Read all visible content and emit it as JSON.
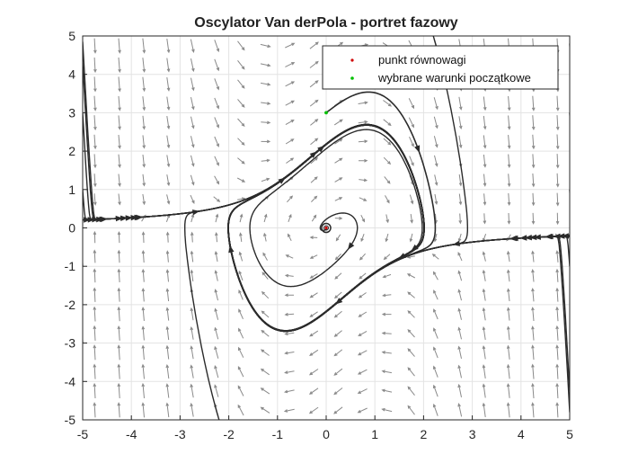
{
  "chart_data": {
    "type": "scatter",
    "title": "Oscylator Van derPola - portret fazowy",
    "xlabel": "",
    "ylabel": "",
    "xlim": [
      -5,
      5
    ],
    "ylim": [
      -5,
      5
    ],
    "xticks": [
      "-5",
      "-4",
      "-3",
      "-2",
      "-1",
      "0",
      "1",
      "2",
      "3",
      "4",
      "5"
    ],
    "yticks": [
      "5",
      "4",
      "3",
      "2",
      "1",
      "0",
      "-1",
      "-2",
      "-3",
      "-4",
      "-5"
    ],
    "grid": true,
    "legend_position": "top-right",
    "system": "dx/dt = y, dy/dt = mu*(1 - x^2)*y - x",
    "mu": 1,
    "series": [
      {
        "name": "punkt równowagi",
        "marker": "dot",
        "color": "#d00000",
        "points": [
          [
            0,
            0
          ]
        ]
      },
      {
        "name": "wybrane warunki początkowe",
        "marker": "dot",
        "color": "#00c000",
        "points": [
          [
            0,
            3
          ]
        ]
      }
    ],
    "trajectory_color": "#2b2b2b",
    "quiver_color": "#8a8a8a"
  },
  "legend": {
    "items": [
      "punkt równowagi",
      "wybrane warunki początkowe"
    ]
  }
}
